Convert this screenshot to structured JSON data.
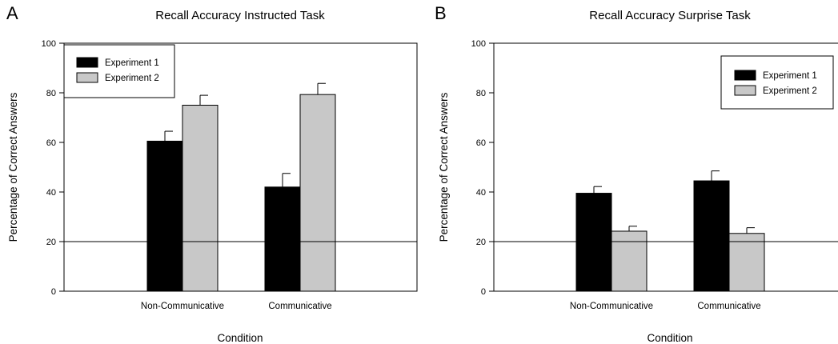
{
  "colors": {
    "experiment_1": "#000000",
    "experiment_2": "#c8c8c8",
    "reference_line": "#000000"
  },
  "chart_data": [
    {
      "type": "bar",
      "panel": "A",
      "title": "Recall Accuracy Instructed Task",
      "xlabel": "Condition",
      "ylabel": "Percentage of Correct Answers",
      "categories": [
        "Non-Communicative",
        "Communicative"
      ],
      "ylim": [
        0,
        100
      ],
      "yticks": [
        "0",
        "20",
        "40",
        "60",
        "80",
        "100"
      ],
      "reference_line": 20,
      "grid": false,
      "legend_position": "top-left",
      "series": [
        {
          "name": "Experiment 1",
          "values": [
            60.5,
            42
          ],
          "errors": [
            4,
            5.5
          ]
        },
        {
          "name": "Experiment 2",
          "values": [
            75,
            79.3
          ],
          "errors": [
            4,
            4.5
          ]
        }
      ]
    },
    {
      "type": "bar",
      "panel": "B",
      "title": "Recall Accuracy Surprise Task",
      "xlabel": "Condition",
      "ylabel": "Percentage of Correct Answers",
      "categories": [
        "Non-Communicative",
        "Communicative"
      ],
      "ylim": [
        0,
        100
      ],
      "yticks": [
        "0",
        "20",
        "40",
        "60",
        "80",
        "100"
      ],
      "reference_line": 20,
      "grid": false,
      "legend_position": "top-right",
      "series": [
        {
          "name": "Experiment 1",
          "values": [
            39.5,
            44.5
          ],
          "errors": [
            2.7,
            4
          ]
        },
        {
          "name": "Experiment 2",
          "values": [
            24.2,
            23.3
          ],
          "errors": [
            2,
            2.3
          ]
        }
      ]
    }
  ]
}
